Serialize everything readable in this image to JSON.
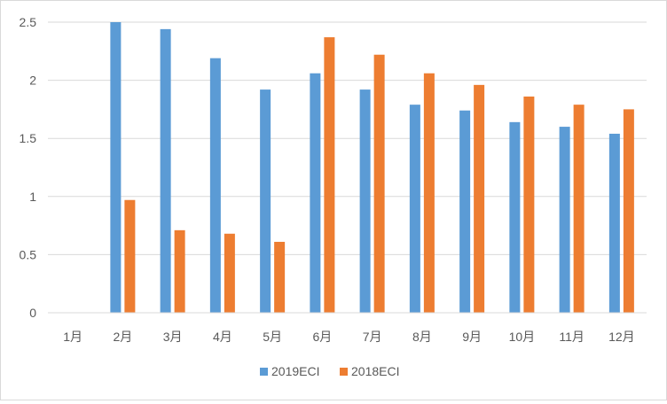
{
  "chart_data": {
    "type": "bar",
    "title": "",
    "xlabel": "",
    "ylabel": "",
    "ylim": [
      0,
      2.5
    ],
    "yticks": [
      "0",
      "0.5",
      "1",
      "1.5",
      "2",
      "2.5"
    ],
    "grid": true,
    "legend_position": "bottom",
    "categories": [
      "1月",
      "2月",
      "3月",
      "4月",
      "5月",
      "6月",
      "7月",
      "8月",
      "9月",
      "10月",
      "11月",
      "12月"
    ],
    "series": [
      {
        "name": "2019ECI",
        "color": "#5b9bd5",
        "values": [
          null,
          2.5,
          2.44,
          2.19,
          1.92,
          2.06,
          1.92,
          1.79,
          1.74,
          1.64,
          1.6,
          1.54
        ]
      },
      {
        "name": "2018ECI",
        "color": "#ed7d31",
        "values": [
          null,
          0.97,
          0.71,
          0.68,
          0.61,
          2.37,
          2.22,
          2.06,
          1.96,
          1.86,
          1.79,
          1.75
        ]
      }
    ]
  }
}
